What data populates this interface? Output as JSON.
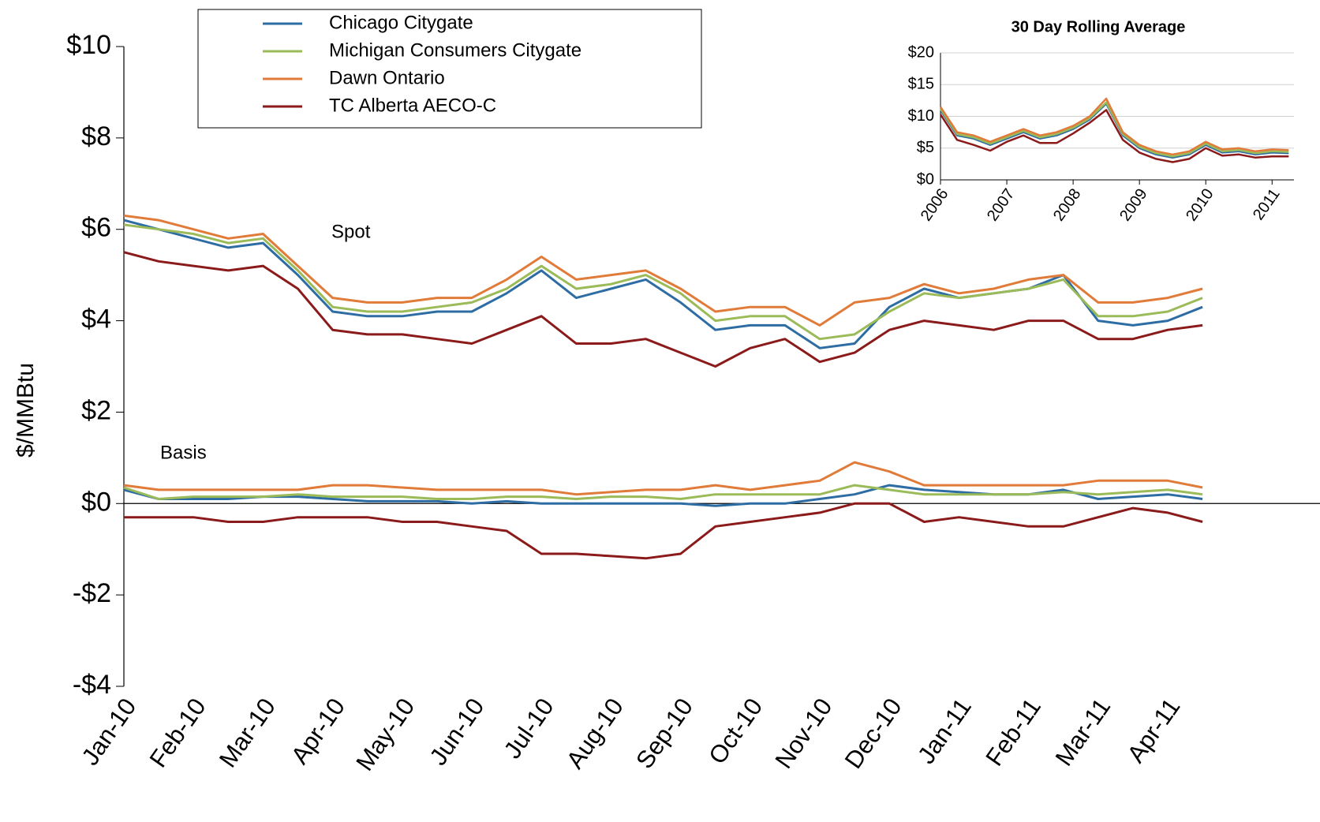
{
  "chart_data": [
    {
      "type": "line",
      "y_label": "$/MMBtu",
      "annotations": [
        "Spot",
        "Basis"
      ],
      "categories": [
        "Jan-10",
        null,
        "Feb-10",
        null,
        "Mar-10",
        null,
        "Apr-10",
        null,
        "May-10",
        null,
        "Jun-10",
        null,
        "Jul-10",
        null,
        "Aug-10",
        null,
        "Sep-10",
        null,
        "Oct-10",
        null,
        "Nov-10",
        null,
        "Dec-10",
        null,
        "Jan-11",
        null,
        "Feb-11",
        null,
        "Mar-11",
        null,
        "Apr-11",
        null
      ],
      "ylim": [
        -4,
        10
      ],
      "yticks": [
        {
          "value": -4,
          "label": "-$4"
        },
        {
          "value": -2,
          "label": "-$2"
        },
        {
          "value": 0,
          "label": "$0"
        },
        {
          "value": 2,
          "label": "$2"
        },
        {
          "value": 4,
          "label": "$4"
        },
        {
          "value": 6,
          "label": "$6"
        },
        {
          "value": 8,
          "label": "$8"
        },
        {
          "value": 10,
          "label": "$10"
        }
      ],
      "series": [
        {
          "name": "Chicago Citygate",
          "color": "#2e6da4",
          "values": [
            6.2,
            6.0,
            5.8,
            5.6,
            5.7,
            5.0,
            4.2,
            4.1,
            4.1,
            4.2,
            4.2,
            4.6,
            5.1,
            4.5,
            4.7,
            4.9,
            4.4,
            3.8,
            3.9,
            3.9,
            3.4,
            3.5,
            4.3,
            4.7,
            4.5,
            4.6,
            4.7,
            5.0,
            4.0,
            3.9,
            4.0,
            4.3
          ]
        },
        {
          "name": "Michigan Consumers Citygate",
          "color": "#9bbb59",
          "values": [
            6.1,
            6.0,
            5.9,
            5.7,
            5.8,
            5.1,
            4.3,
            4.2,
            4.2,
            4.3,
            4.4,
            4.7,
            5.2,
            4.7,
            4.8,
            5.0,
            4.6,
            4.0,
            4.1,
            4.1,
            3.6,
            3.7,
            4.2,
            4.6,
            4.5,
            4.6,
            4.7,
            4.9,
            4.1,
            4.1,
            4.2,
            4.5
          ]
        },
        {
          "name": "Dawn Ontario",
          "color": "#e07b39",
          "values": [
            6.3,
            6.2,
            6.0,
            5.8,
            5.9,
            5.2,
            4.5,
            4.4,
            4.4,
            4.5,
            4.5,
            4.9,
            5.4,
            4.9,
            5.0,
            5.1,
            4.7,
            4.2,
            4.3,
            4.3,
            3.9,
            4.4,
            4.5,
            4.8,
            4.6,
            4.7,
            4.9,
            5.0,
            4.4,
            4.4,
            4.5,
            4.7
          ]
        },
        {
          "name": "TC Alberta AECO-C",
          "color": "#8b1a1a",
          "values": [
            5.5,
            5.3,
            5.2,
            5.1,
            5.2,
            4.7,
            3.8,
            3.7,
            3.7,
            3.6,
            3.5,
            3.8,
            4.1,
            3.5,
            3.5,
            3.6,
            3.3,
            3.0,
            3.4,
            3.6,
            3.1,
            3.3,
            3.8,
            4.0,
            3.9,
            3.8,
            4.0,
            4.0,
            3.6,
            3.6,
            3.8,
            3.9
          ]
        }
      ],
      "basis_series": [
        {
          "color": "#2e6da4",
          "values": [
            0.3,
            0.1,
            0.1,
            0.1,
            0.15,
            0.15,
            0.1,
            0.05,
            0.05,
            0.05,
            0.0,
            0.05,
            0.0,
            0.0,
            0.0,
            0.0,
            0.0,
            -0.05,
            0.0,
            0.0,
            0.1,
            0.2,
            0.4,
            0.3,
            0.25,
            0.2,
            0.2,
            0.3,
            0.1,
            0.15,
            0.2,
            0.1
          ]
        },
        {
          "color": "#9bbb59",
          "values": [
            0.35,
            0.1,
            0.15,
            0.15,
            0.15,
            0.2,
            0.15,
            0.15,
            0.15,
            0.1,
            0.1,
            0.15,
            0.15,
            0.1,
            0.15,
            0.15,
            0.1,
            0.2,
            0.2,
            0.2,
            0.2,
            0.4,
            0.3,
            0.2,
            0.2,
            0.2,
            0.2,
            0.25,
            0.2,
            0.25,
            0.3,
            0.2
          ]
        },
        {
          "color": "#e07b39",
          "values": [
            0.4,
            0.3,
            0.3,
            0.3,
            0.3,
            0.3,
            0.4,
            0.4,
            0.35,
            0.3,
            0.3,
            0.3,
            0.3,
            0.2,
            0.25,
            0.3,
            0.3,
            0.4,
            0.3,
            0.4,
            0.5,
            0.9,
            0.7,
            0.4,
            0.4,
            0.4,
            0.4,
            0.4,
            0.5,
            0.5,
            0.5,
            0.35
          ]
        },
        {
          "color": "#8b1a1a",
          "values": [
            -0.3,
            -0.3,
            -0.3,
            -0.4,
            -0.4,
            -0.3,
            -0.3,
            -0.3,
            -0.4,
            -0.4,
            -0.5,
            -0.6,
            -1.1,
            -1.1,
            -1.15,
            -1.2,
            -1.1,
            -0.5,
            -0.4,
            -0.3,
            -0.2,
            0.0,
            0.0,
            -0.4,
            -0.3,
            -0.4,
            -0.5,
            -0.5,
            -0.3,
            -0.1,
            -0.2,
            -0.4
          ]
        }
      ]
    },
    {
      "type": "line",
      "title": "30 Day Rolling Average",
      "x": [
        2006,
        2006.25,
        2006.5,
        2006.75,
        2007,
        2007.25,
        2007.5,
        2007.75,
        2008,
        2008.25,
        2008.5,
        2008.75,
        2009,
        2009.25,
        2009.5,
        2009.75,
        2010,
        2010.25,
        2010.5,
        2010.75,
        2011,
        2011.25
      ],
      "xlim": [
        2006,
        2011.33
      ],
      "xticks": [
        2006,
        2007,
        2008,
        2009,
        2010,
        2011
      ],
      "ylim": [
        0,
        20
      ],
      "yticks": [
        {
          "value": 0,
          "label": "$0"
        },
        {
          "value": 5,
          "label": "$5"
        },
        {
          "value": 10,
          "label": "$10"
        },
        {
          "value": 15,
          "label": "$15"
        },
        {
          "value": 20,
          "label": "$20"
        }
      ],
      "grid": true,
      "series": [
        {
          "color": "#2e6da4",
          "values": [
            11,
            7,
            6.5,
            5.5,
            6.5,
            7.5,
            6.5,
            7,
            8,
            9.5,
            12,
            7,
            5,
            4,
            3.5,
            4,
            5.5,
            4.3,
            4.5,
            4,
            4.3,
            4.2
          ]
        },
        {
          "color": "#9bbb59",
          "values": [
            11.2,
            7.2,
            6.7,
            5.7,
            6.7,
            7.7,
            6.7,
            7.2,
            8.2,
            9.7,
            12.2,
            7.2,
            5.2,
            4.2,
            3.7,
            4.2,
            5.7,
            4.5,
            4.7,
            4.2,
            4.5,
            4.4
          ]
        },
        {
          "color": "#e07b39",
          "values": [
            11.5,
            7.5,
            7,
            6,
            7,
            8,
            7,
            7.5,
            8.5,
            10,
            12.8,
            7.5,
            5.5,
            4.5,
            4,
            4.5,
            6,
            4.8,
            5,
            4.5,
            4.8,
            4.7
          ]
        },
        {
          "color": "#8b1a1a",
          "values": [
            10.3,
            6.3,
            5.5,
            4.6,
            6,
            7,
            5.8,
            5.8,
            7.3,
            9,
            11,
            6.3,
            4.3,
            3.3,
            2.8,
            3.3,
            5,
            3.8,
            4,
            3.5,
            3.7,
            3.7
          ]
        }
      ]
    }
  ]
}
